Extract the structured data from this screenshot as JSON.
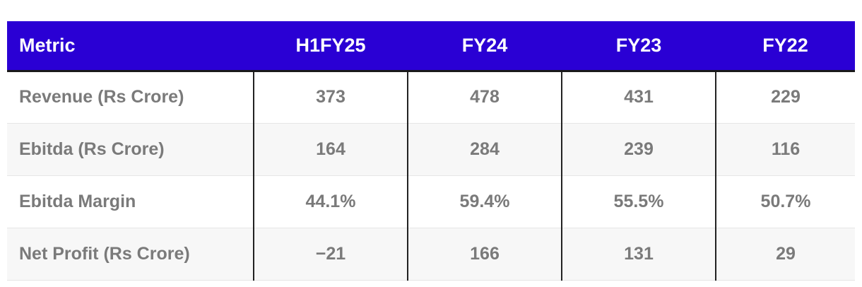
{
  "table": {
    "headers": [
      "Metric",
      "H1FY25",
      "FY24",
      "FY23",
      "FY22"
    ],
    "rows": [
      {
        "metric": "Revenue (Rs Crore)",
        "values": [
          "373",
          "478",
          "431",
          "229"
        ]
      },
      {
        "metric": "Ebitda (Rs Crore)",
        "values": [
          "164",
          "284",
          "239",
          "116"
        ]
      },
      {
        "metric": "Ebitda Margin",
        "values": [
          "44.1%",
          "59.4%",
          "55.5%",
          "50.7%"
        ]
      },
      {
        "metric": "Net Profit (Rs Crore)",
        "values": [
          "−21",
          "166",
          "131",
          "29"
        ]
      }
    ]
  },
  "colors": {
    "header_background": "#2a00d4",
    "header_text": "#ffffff",
    "body_text": "#7a7a7a"
  }
}
